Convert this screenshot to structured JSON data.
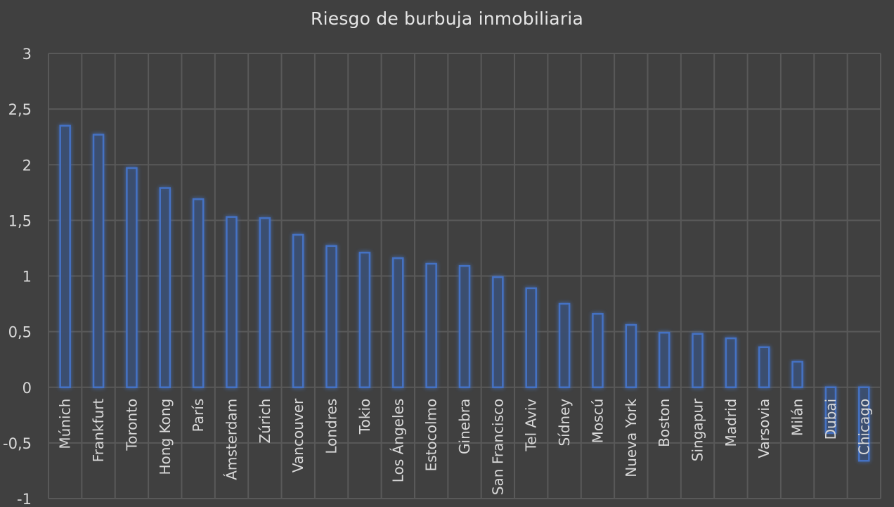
{
  "chart_data": {
    "type": "bar",
    "title": "Riesgo de burbuja inmobiliaria",
    "xlabel": "",
    "ylabel": "",
    "ylim": [
      -1,
      3
    ],
    "yticks": [
      3,
      2.5,
      2,
      1.5,
      1,
      0.5,
      0,
      -0.5,
      -1
    ],
    "ytick_labels": [
      "3",
      "2,5",
      "2",
      "1,5",
      "1",
      "0,5",
      "0",
      "-0,5",
      "-1"
    ],
    "grid": true,
    "legend": null,
    "categories": [
      "Múnich",
      "Frankfurt",
      "Toronto",
      "Hong Kong",
      "París",
      "Ámsterdam",
      "Zúrich",
      "Vancouver",
      "Londres",
      "Tokio",
      "Los Ángeles",
      "Estocolmo",
      "Ginebra",
      "San Francisco",
      "Tel Aviv",
      "Sídney",
      "Moscú",
      "Nueva York",
      "Boston",
      "Singapur",
      "Madrid",
      "Varsovia",
      "Milán",
      "Dubai",
      "Chicago"
    ],
    "values": [
      2.35,
      2.27,
      1.97,
      1.79,
      1.69,
      1.53,
      1.52,
      1.37,
      1.27,
      1.21,
      1.16,
      1.11,
      1.09,
      0.99,
      0.89,
      0.75,
      0.66,
      0.56,
      0.49,
      0.48,
      0.44,
      0.36,
      0.23,
      -0.41,
      -0.66
    ],
    "colors": {
      "background": "#404040",
      "grid": "#595959",
      "bar_fill": "#3b4e6e",
      "bar_stroke": "#4472c4",
      "glow": "#4472c4",
      "text": "#d9d9d9"
    }
  }
}
